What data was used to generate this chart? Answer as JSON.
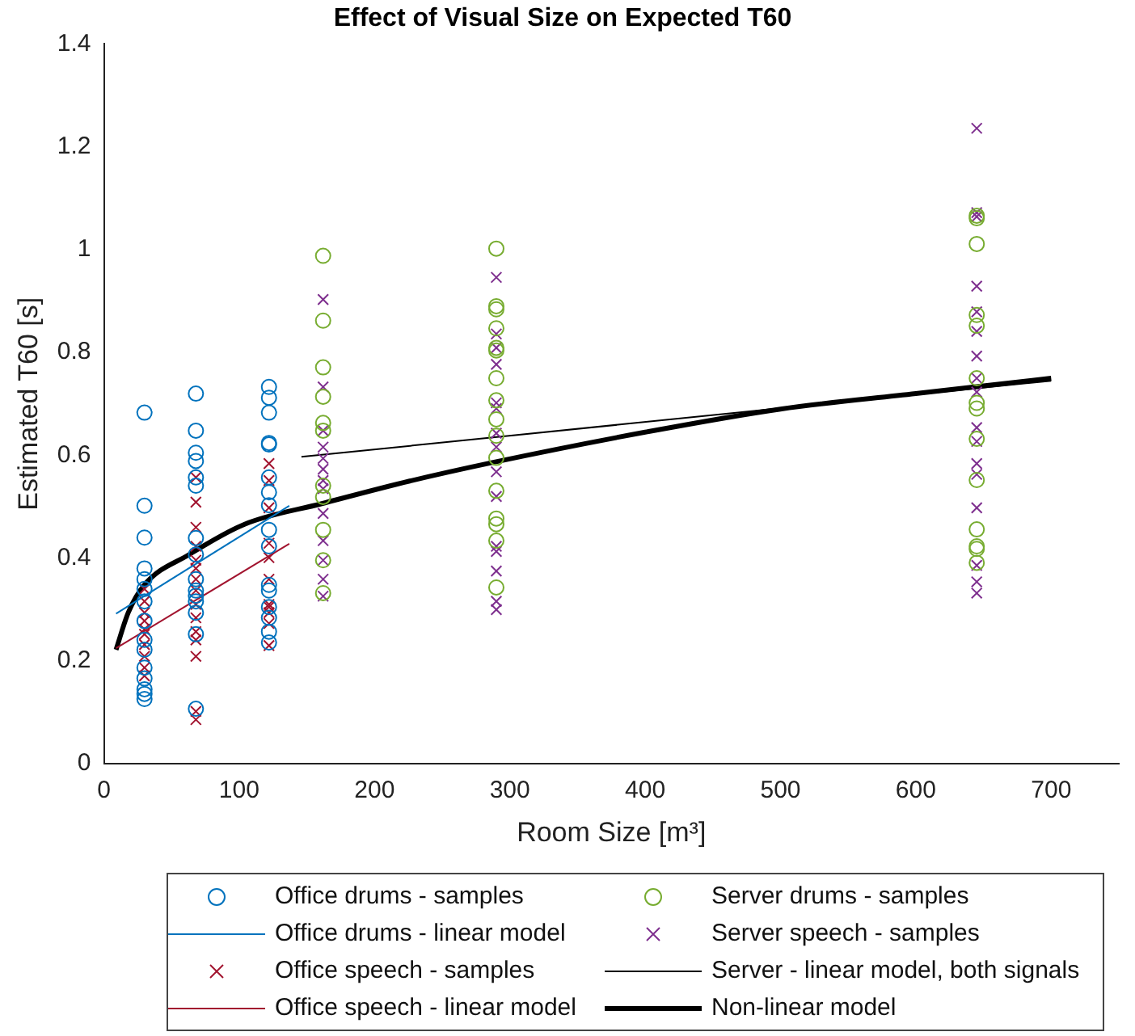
{
  "chart_data": {
    "type": "scatter",
    "title": "Effect of Visual Size on Expected T60",
    "xlabel": "Room Size [m³]",
    "ylabel": "Estimated T60 [s]",
    "xlim": [
      0,
      750
    ],
    "xticks": [
      0,
      100,
      200,
      300,
      400,
      500,
      600,
      700
    ],
    "ylim": [
      0,
      1.4
    ],
    "yticks": [
      0,
      0.2,
      0.4,
      0.6,
      0.8,
      1,
      1.2,
      1.4
    ],
    "grid": false,
    "legend": "bottom",
    "series": [
      {
        "name": "Office drums - samples",
        "type": "scatter",
        "marker": "circle",
        "color": "#0072bd",
        "x": [
          30,
          30,
          30,
          30,
          30,
          30,
          30,
          30,
          30,
          30,
          30,
          30,
          30,
          30,
          30,
          68,
          68,
          68,
          68,
          68,
          68,
          68,
          68,
          68,
          68,
          68,
          68,
          68,
          68,
          68,
          122,
          122,
          122,
          122,
          122,
          122,
          122,
          122,
          122,
          122,
          122,
          122,
          122,
          122,
          122,
          122
        ],
        "values": [
          0.683,
          0.502,
          0.44,
          0.38,
          0.359,
          0.34,
          0.316,
          0.278,
          0.241,
          0.222,
          0.187,
          0.166,
          0.145,
          0.136,
          0.126,
          0.72,
          0.648,
          0.605,
          0.589,
          0.557,
          0.541,
          0.439,
          0.407,
          0.359,
          0.337,
          0.327,
          0.316,
          0.294,
          0.252,
          0.107,
          0.733,
          0.712,
          0.683,
          0.624,
          0.621,
          0.557,
          0.528,
          0.503,
          0.455,
          0.423,
          0.348,
          0.337,
          0.305,
          0.284,
          0.257,
          0.236
        ]
      },
      {
        "name": "Office drums - linear model",
        "type": "line",
        "color": "#0072bd",
        "x": [
          9,
          137
        ],
        "values": [
          0.292,
          0.502
        ]
      },
      {
        "name": "Office speech - samples",
        "type": "scatter",
        "marker": "cross",
        "color": "#a2142f",
        "x": [
          30,
          30,
          30,
          30,
          30,
          30,
          30,
          30,
          30,
          30,
          68,
          68,
          68,
          68,
          68,
          68,
          68,
          68,
          68,
          68,
          68,
          68,
          68,
          68,
          68,
          122,
          122,
          122,
          122,
          122,
          122,
          122,
          122,
          122,
          122,
          122
        ],
        "values": [
          0.34,
          0.316,
          0.294,
          0.278,
          0.262,
          0.252,
          0.232,
          0.209,
          0.187,
          0.171,
          0.557,
          0.509,
          0.46,
          0.423,
          0.396,
          0.38,
          0.359,
          0.337,
          0.31,
          0.284,
          0.257,
          0.241,
          0.209,
          0.102,
          0.086,
          0.584,
          0.551,
          0.498,
          0.429,
          0.401,
          0.359,
          0.31,
          0.305,
          0.294,
          0.273,
          0.23
        ]
      },
      {
        "name": "Office speech - linear model",
        "type": "line",
        "color": "#a2142f",
        "x": [
          9,
          137
        ],
        "values": [
          0.225,
          0.428
        ]
      },
      {
        "name": "Server drums - samples",
        "type": "scatter",
        "marker": "circle",
        "color": "#77ac30",
        "x": [
          162,
          162,
          162,
          162,
          162,
          162,
          162,
          162,
          162,
          162,
          162,
          290,
          290,
          290,
          290,
          290,
          290,
          290,
          290,
          290,
          290,
          290,
          290,
          290,
          290,
          290,
          290,
          645,
          645,
          645,
          645,
          645,
          645,
          645,
          645,
          645,
          645,
          645,
          645,
          645,
          645
        ],
        "values": [
          0.988,
          0.862,
          0.771,
          0.714,
          0.663,
          0.648,
          0.541,
          0.519,
          0.455,
          0.396,
          0.332,
          1.002,
          0.89,
          0.884,
          0.847,
          0.809,
          0.804,
          0.75,
          0.707,
          0.67,
          0.638,
          0.595,
          0.531,
          0.477,
          0.466,
          0.434,
          0.343,
          1.066,
          1.061,
          1.011,
          0.873,
          0.852,
          0.75,
          0.702,
          0.691,
          0.632,
          0.552,
          0.456,
          0.423,
          0.418,
          0.391
        ]
      },
      {
        "name": "Server speech - samples",
        "type": "scatter",
        "marker": "cross",
        "color": "#7e2f8e",
        "x": [
          162,
          162,
          162,
          162,
          162,
          162,
          162,
          162,
          162,
          162,
          162,
          162,
          162,
          290,
          290,
          290,
          290,
          290,
          290,
          290,
          290,
          290,
          290,
          290,
          290,
          290,
          290,
          290,
          645,
          645,
          645,
          645,
          645,
          645,
          645,
          645,
          645,
          645,
          645,
          645,
          645,
          645,
          645,
          645,
          645
        ],
        "values": [
          0.903,
          0.733,
          0.648,
          0.616,
          0.594,
          0.573,
          0.551,
          0.535,
          0.487,
          0.434,
          0.396,
          0.359,
          0.326,
          0.946,
          0.836,
          0.809,
          0.777,
          0.702,
          0.691,
          0.643,
          0.616,
          0.568,
          0.52,
          0.423,
          0.413,
          0.375,
          0.316,
          0.3,
          1.236,
          1.072,
          1.064,
          0.929,
          0.879,
          0.841,
          0.793,
          0.75,
          0.723,
          0.654,
          0.627,
          0.584,
          0.563,
          0.498,
          0.386,
          0.354,
          0.332
        ]
      },
      {
        "name": "Server - linear model, both signals",
        "type": "line",
        "color": "#000000",
        "x": [
          146,
          700
        ],
        "values": [
          0.597,
          0.745
        ]
      },
      {
        "name": "Non-linear model",
        "type": "line",
        "color": "#000000",
        "x": [
          9,
          18,
          30,
          63,
          104,
          161,
          226,
          287,
          400,
          500,
          600,
          700
        ],
        "values": [
          0.222,
          0.294,
          0.348,
          0.407,
          0.466,
          0.506,
          0.55,
          0.586,
          0.645,
          0.69,
          0.72,
          0.75
        ]
      }
    ]
  }
}
